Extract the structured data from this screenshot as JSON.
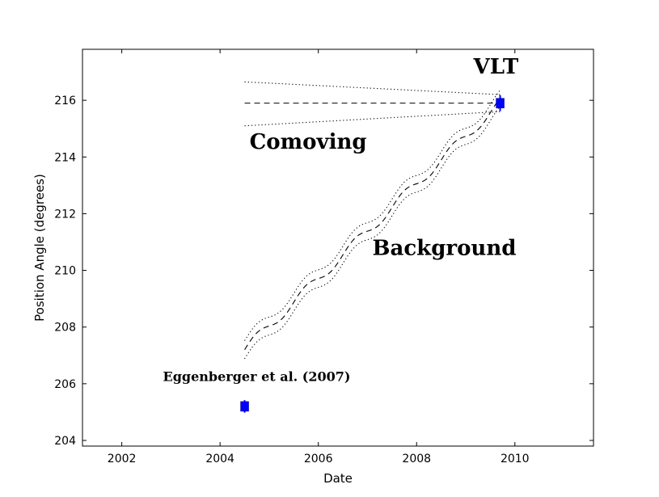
{
  "chart_data": {
    "type": "scatter",
    "title": "",
    "xlabel": "Date",
    "ylabel": "Position Angle (degrees)",
    "xlim": [
      2001.2,
      2011.6
    ],
    "ylim": [
      203.8,
      217.8
    ],
    "xticks": [
      2002,
      2004,
      2006,
      2008,
      2010
    ],
    "yticks": [
      204,
      206,
      208,
      210,
      212,
      214,
      216
    ],
    "xtick_labels": [
      "2002",
      "2004",
      "2006",
      "2008",
      "2010"
    ],
    "ytick_labels": [
      "204",
      "206",
      "208",
      "210",
      "212",
      "214",
      "216"
    ],
    "points": [
      {
        "name": "Eggenberger et al. (2007)",
        "x": 2004.5,
        "y": 205.2,
        "yerr": 0.22,
        "color": "#0000ff"
      },
      {
        "name": "VLT",
        "x": 2009.7,
        "y": 215.9,
        "yerr": 0.28,
        "color": "#0000ff"
      }
    ],
    "comoving": {
      "x_start": 2004.5,
      "x_end": 2009.7,
      "center": 215.9,
      "upper_start": 216.65,
      "upper_end": 216.2,
      "lower_start": 215.1,
      "lower_end": 215.6
    },
    "background": {
      "x_start": 2004.5,
      "x_end": 2009.7,
      "y_start": 207.2,
      "y_end": 215.9,
      "wiggle_amplitude": 0.18,
      "band_start": 0.32,
      "band_end": 0.28
    },
    "annotations": {
      "vlt": "VLT",
      "comoving": "Comoving",
      "background": "Background",
      "eggenberger": "Eggenberger et al. (2007)"
    }
  }
}
